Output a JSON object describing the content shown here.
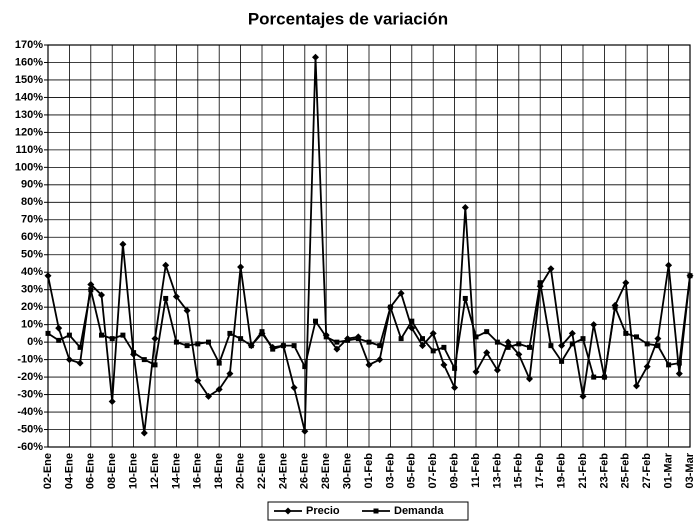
{
  "chart_data": {
    "type": "line",
    "title": "Porcentajes de variación",
    "categories": [
      "02-Ene",
      null,
      "04-Ene",
      null,
      "06-Ene",
      null,
      "08-Ene",
      null,
      "10-Ene",
      null,
      "12-Ene",
      null,
      "14-Ene",
      null,
      "16-Ene",
      null,
      "18-Ene",
      null,
      "20-Ene",
      null,
      "22-Ene",
      null,
      "24-Ene",
      null,
      "26-Ene",
      null,
      "28-Ene",
      null,
      "30-Ene",
      null,
      "01-Feb",
      null,
      "03-Feb",
      null,
      "05-Feb",
      null,
      "07-Feb",
      null,
      "09-Feb",
      null,
      "11-Feb",
      null,
      "13-Feb",
      null,
      "15-Feb",
      null,
      "17-Feb",
      null,
      "19-Feb",
      null,
      "21-Feb",
      null,
      "23-Feb",
      null,
      "25-Feb",
      null,
      "27-Feb",
      null,
      "01-Mar",
      null,
      "03-Mar"
    ],
    "series": [
      {
        "name": "Precio",
        "color": "#000000",
        "marker": "diamond",
        "values": [
          38,
          8,
          -10,
          -12,
          33,
          27,
          -34,
          56,
          -7,
          -52,
          2,
          44,
          26,
          18,
          -22,
          -31,
          -27,
          -18,
          43,
          -2,
          5,
          -3,
          -2,
          -26,
          -51,
          163,
          4,
          -4,
          2,
          3,
          -13,
          -10,
          20,
          28,
          8,
          -2,
          5,
          -13,
          -26,
          77,
          -17,
          -6,
          -16,
          0,
          -7,
          -21,
          32,
          42,
          -2,
          5,
          -31,
          10,
          -20,
          21,
          34,
          -25,
          -14,
          2,
          44,
          -18,
          38
        ]
      },
      {
        "name": "Demanda",
        "color": "#000000",
        "marker": "square",
        "values": [
          5,
          1,
          4,
          -3,
          30,
          4,
          2,
          4,
          -6,
          -10,
          -13,
          25,
          0,
          -2,
          -1,
          0,
          -12,
          5,
          2,
          -2,
          6,
          -4,
          -2,
          -2,
          -14,
          12,
          3,
          0,
          1,
          2,
          0,
          -2,
          20,
          2,
          12,
          2,
          -5,
          -3,
          -15,
          25,
          3,
          6,
          0,
          -3,
          -1,
          -3,
          34,
          -2,
          -11,
          -1,
          2,
          -20,
          -20,
          20,
          5,
          3,
          -1,
          -2,
          -13,
          -12,
          38
        ]
      }
    ],
    "ylim": [
      -60,
      170
    ],
    "yticks": [
      {
        "value": -60,
        "label": "-60%"
      },
      {
        "value": -50,
        "label": "-50%"
      },
      {
        "value": -40,
        "label": "-40%"
      },
      {
        "value": -30,
        "label": "-30%"
      },
      {
        "value": -20,
        "label": "-20%"
      },
      {
        "value": -10,
        "label": "-10%"
      },
      {
        "value": 0,
        "label": "0%"
      },
      {
        "value": 10,
        "label": "10%"
      },
      {
        "value": 20,
        "label": "20%"
      },
      {
        "value": 30,
        "label": "30%"
      },
      {
        "value": 40,
        "label": "40%"
      },
      {
        "value": 50,
        "label": "50%"
      },
      {
        "value": 60,
        "label": "60%"
      },
      {
        "value": 70,
        "label": "70%"
      },
      {
        "value": 80,
        "label": "80%"
      },
      {
        "value": 90,
        "label": "90%"
      },
      {
        "value": 100,
        "label": "100%"
      },
      {
        "value": 110,
        "label": "110%"
      },
      {
        "value": 120,
        "label": "120%"
      },
      {
        "value": 130,
        "label": "130%"
      },
      {
        "value": 140,
        "label": "140%"
      },
      {
        "value": 150,
        "label": "150%"
      },
      {
        "value": 160,
        "label": "160%"
      },
      {
        "value": 170,
        "label": "170%"
      }
    ],
    "grid": true,
    "legend": "bottom"
  }
}
